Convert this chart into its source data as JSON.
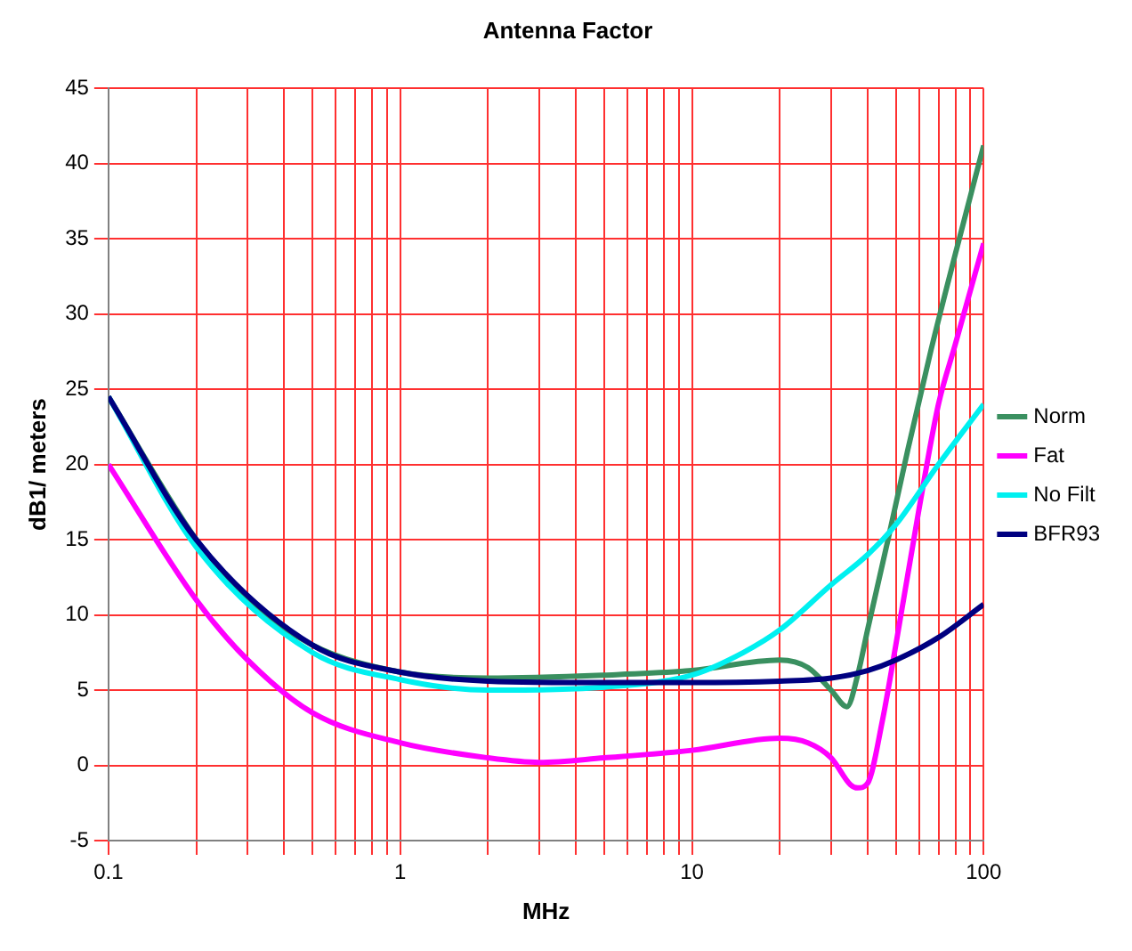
{
  "chart_data": {
    "type": "line",
    "title": "Antenna Factor",
    "xlabel": "MHz",
    "ylabel": "dB1/ meters",
    "log": "x",
    "grid": true,
    "legend": "right",
    "marker": "none",
    "line_style": "solid",
    "xlim": [
      0.1,
      100
    ],
    "xticks": [
      0.1,
      {
        "value": 0.2,
        "label": null
      },
      {
        "value": 0.3,
        "label": null
      },
      {
        "value": 0.4,
        "label": null
      },
      {
        "value": 0.5,
        "label": null
      },
      {
        "value": 0.6,
        "label": null
      },
      {
        "value": 0.7,
        "label": null
      },
      {
        "value": 0.8,
        "label": null
      },
      {
        "value": 0.9,
        "label": null
      },
      1,
      {
        "value": 2,
        "label": null
      },
      {
        "value": 3,
        "label": null
      },
      {
        "value": 4,
        "label": null
      },
      {
        "value": 5,
        "label": null
      },
      {
        "value": 6,
        "label": null
      },
      {
        "value": 7,
        "label": null
      },
      {
        "value": 8,
        "label": null
      },
      {
        "value": 9,
        "label": null
      },
      10,
      {
        "value": 20,
        "label": null
      },
      {
        "value": 30,
        "label": null
      },
      {
        "value": 40,
        "label": null
      },
      {
        "value": 50,
        "label": null
      },
      {
        "value": 60,
        "label": null
      },
      {
        "value": 70,
        "label": null
      },
      {
        "value": 80,
        "label": null
      },
      {
        "value": 90,
        "label": null
      },
      100
    ],
    "ylim": [
      -5,
      45
    ],
    "yticks": [
      -5,
      0,
      5,
      10,
      15,
      20,
      25,
      30,
      35,
      40,
      45
    ],
    "series": [
      {
        "name": "Norm",
        "color": "#3a9060",
        "x": [
          0.1,
          0.2,
          0.3,
          0.5,
          1,
          2,
          5,
          10,
          20,
          25,
          30,
          34,
          37,
          40,
          47,
          55,
          66,
          80,
          100
        ],
        "values": [
          24.5,
          15,
          11,
          8,
          6.2,
          5.8,
          6,
          6.3,
          7,
          6.5,
          5,
          3.9,
          6,
          9,
          15,
          21,
          27.6,
          34,
          41.2
        ]
      },
      {
        "name": "Fat",
        "color": "#ff00ff",
        "x": [
          0.1,
          0.2,
          0.3,
          0.5,
          1,
          2,
          3,
          5,
          10,
          20,
          25,
          30,
          35,
          37,
          40,
          45,
          50,
          60,
          70,
          80,
          100
        ],
        "values": [
          20,
          11,
          7,
          3.5,
          1.5,
          0.5,
          0.2,
          0.5,
          1,
          1.8,
          1.5,
          0.5,
          -1.3,
          -1.5,
          -1.2,
          3,
          8,
          17,
          24,
          28,
          34.7
        ]
      },
      {
        "name": "No Filt",
        "color": "#00f0f0",
        "x": [
          0.1,
          0.2,
          0.5,
          1,
          2,
          5,
          10,
          15,
          20,
          30,
          40,
          50,
          70,
          100
        ],
        "values": [
          24.5,
          14.5,
          7.5,
          5.7,
          5,
          5.2,
          6,
          7.5,
          9,
          12,
          14,
          16,
          20,
          24
        ]
      },
      {
        "name": "BFR93",
        "color": "#000080",
        "x": [
          0.1,
          0.2,
          0.5,
          1,
          2,
          5,
          10,
          20,
          30,
          40,
          50,
          70,
          100
        ],
        "values": [
          24.5,
          15,
          8,
          6.2,
          5.6,
          5.5,
          5.5,
          5.6,
          5.8,
          6.3,
          7,
          8.5,
          10.7
        ]
      }
    ]
  }
}
